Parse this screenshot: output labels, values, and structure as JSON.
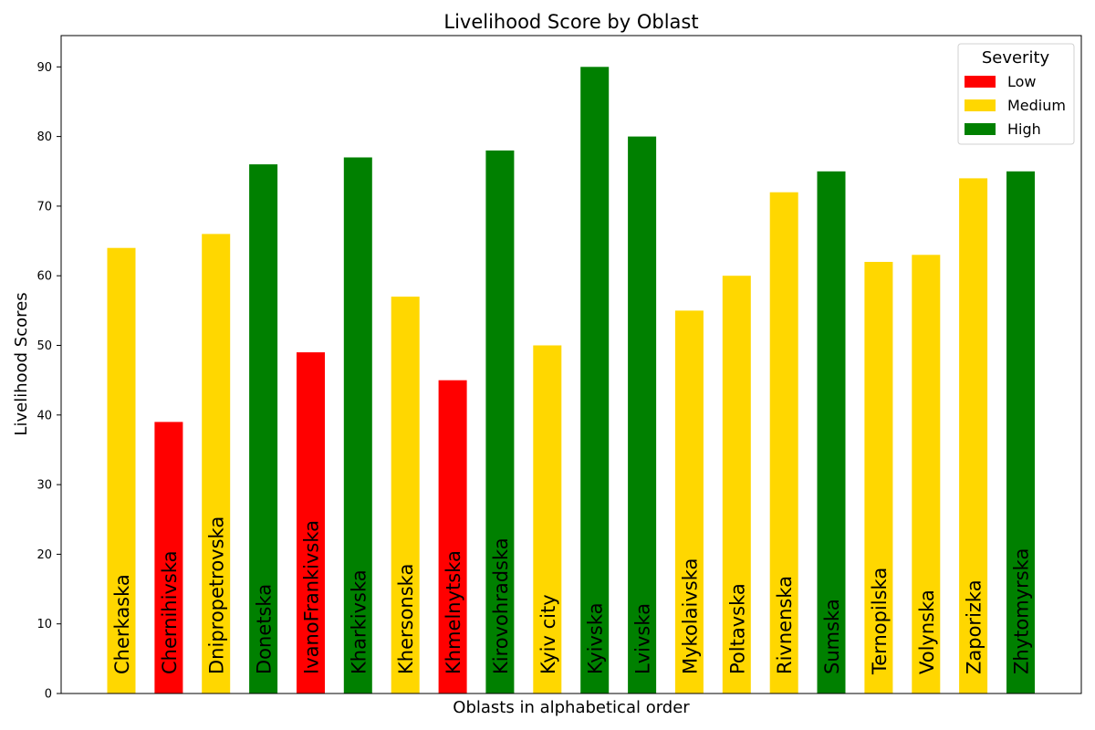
{
  "chart_data": {
    "type": "bar",
    "title": "Livelihood Score by Oblast",
    "xlabel": "Oblasts in alphabetical order",
    "ylabel": "Livelihood Scores",
    "ylim": [
      0,
      94.5
    ],
    "yticks": [
      0,
      10,
      20,
      30,
      40,
      50,
      60,
      70,
      80,
      90
    ],
    "grid": false,
    "legend": {
      "title": "Severity",
      "placement": "top-right",
      "entries": [
        {
          "label": "Low",
          "color": "#ff0000"
        },
        {
          "label": "Medium",
          "color": "#ffd700"
        },
        {
          "label": "High",
          "color": "#008000"
        }
      ]
    },
    "categories": [
      "Cherkaska",
      "Chernihivska",
      "Dnipropetrovska",
      "Donetska",
      "IvanoFrankivska",
      "Kharkivska",
      "Khersonska",
      "Khmelnytska",
      "Kirovohradska",
      "Kyiv city",
      "Kyivska",
      "Lvivska",
      "Mykolaivska",
      "Poltavska",
      "Rivnenska",
      "Sumska",
      "Ternopilska",
      "Volynska",
      "Zaporizka",
      "Zhytomyrska"
    ],
    "values": [
      64,
      39,
      66,
      76,
      49,
      77,
      57,
      45,
      78,
      50,
      90,
      80,
      55,
      60,
      72,
      75,
      62,
      63,
      74,
      75
    ],
    "severity": [
      "Medium",
      "Low",
      "Medium",
      "High",
      "Low",
      "High",
      "Medium",
      "Low",
      "High",
      "Medium",
      "High",
      "High",
      "Medium",
      "Medium",
      "Medium",
      "High",
      "Medium",
      "Medium",
      "Medium",
      "High"
    ]
  }
}
